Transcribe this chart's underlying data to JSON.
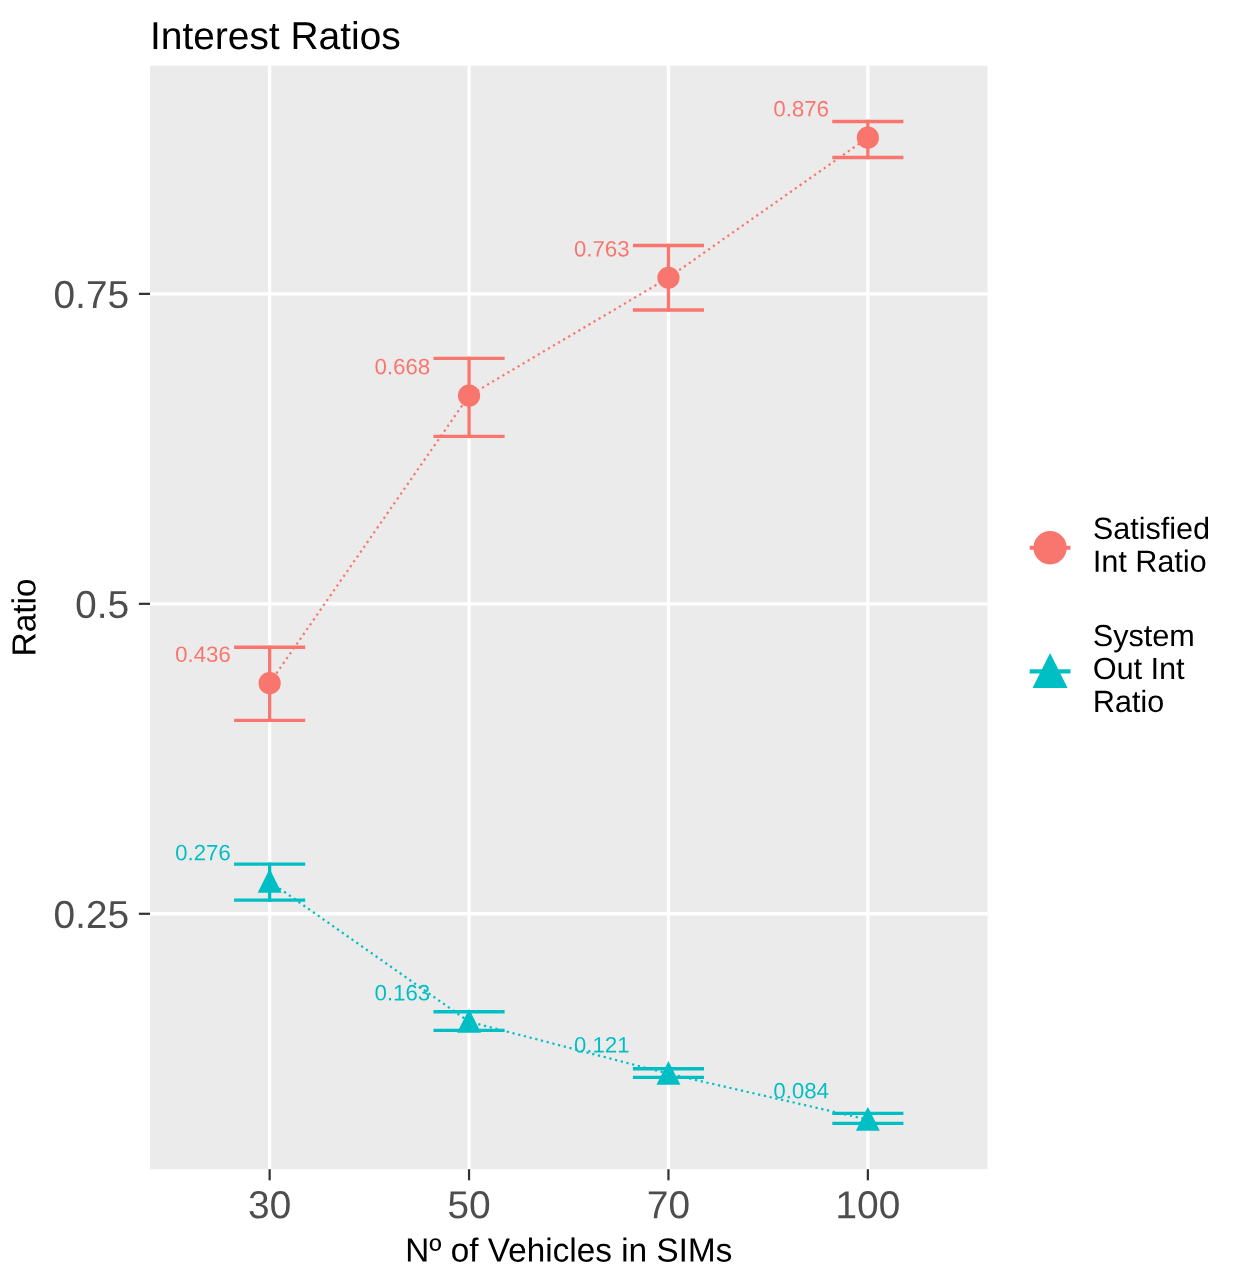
{
  "chart_data": {
    "type": "line",
    "title": "Interest Ratios",
    "xlabel": "Nº of Vehicles in SIMs",
    "ylabel": "Ratio",
    "categories": [
      "30",
      "50",
      "70",
      "100"
    ],
    "series": [
      {
        "name": "Satisfied\nInt Ratio",
        "color": "#f8766d",
        "marker": "circle",
        "values": [
          0.436,
          0.668,
          0.763,
          0.876
        ],
        "errors": [
          [
            0.406,
            0.465
          ],
          [
            0.635,
            0.698
          ],
          [
            0.737,
            0.789
          ],
          [
            0.86,
            0.889
          ]
        ]
      },
      {
        "name": "System\nOut Int\nRatio",
        "color": "#00bfc4",
        "marker": "triangle",
        "values": [
          0.276,
          0.163,
          0.121,
          0.084
        ],
        "errors": [
          [
            0.261,
            0.29
          ],
          [
            0.156,
            0.171
          ],
          [
            0.118,
            0.125
          ],
          [
            0.081,
            0.089
          ]
        ]
      }
    ],
    "ylim": [
      0.044,
      0.934
    ],
    "yticks": [
      0.25,
      0.5,
      0.75
    ],
    "grid": true,
    "legend": "right",
    "line_style": "dotted",
    "data_labels": true
  }
}
